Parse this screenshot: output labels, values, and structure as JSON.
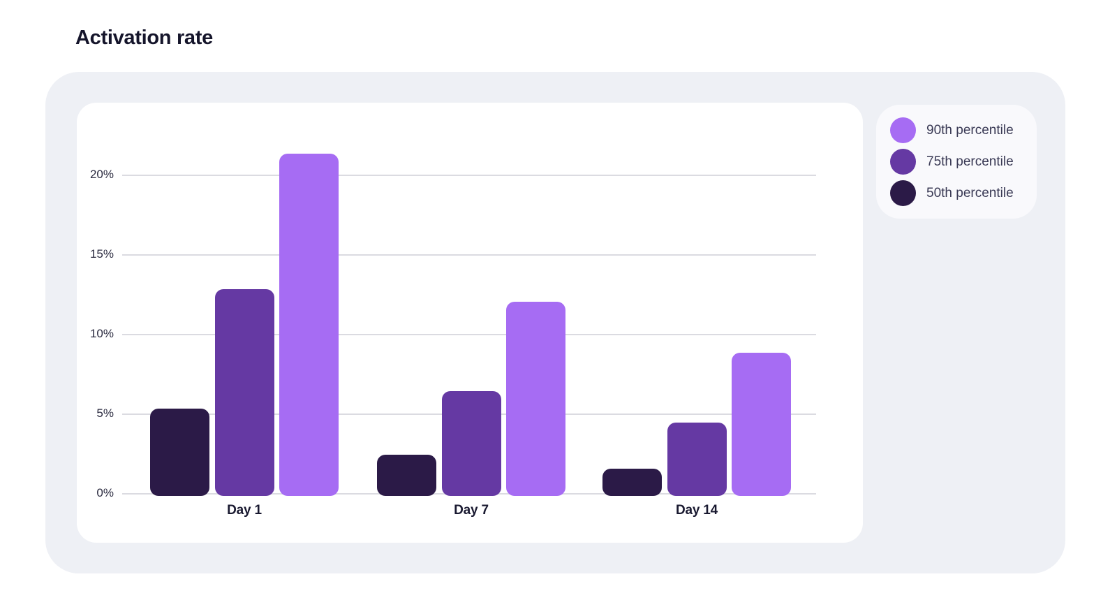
{
  "title": "Activation rate",
  "colors": {
    "page_bg": "#FFFFFF",
    "panel_bg": "#EEF0F5",
    "card_bg": "#FFFFFF",
    "legend_bg": "#F9F9FC",
    "gridline": "#DBDBE1",
    "axis_text": "#2B2B40",
    "category_text": "#191930",
    "legend_text": "#3A3A55",
    "title_text": "#15152B",
    "series_90th": "#A66CF3",
    "series_75th": "#6539A3",
    "series_50th": "#2B1A47"
  },
  "chart_data": {
    "type": "bar",
    "title": "Activation rate",
    "categories": [
      "Day 1",
      "Day 7",
      "Day 14"
    ],
    "series": [
      {
        "name": "50th percentile",
        "color": "#2B1A47",
        "values": [
          5.5,
          2.6,
          1.7
        ]
      },
      {
        "name": "75th percentile",
        "color": "#6539A3",
        "values": [
          13.0,
          6.6,
          4.6
        ]
      },
      {
        "name": "90th percentile",
        "color": "#A66CF3",
        "values": [
          21.5,
          12.2,
          9.0
        ]
      }
    ],
    "y_ticks": [
      {
        "value": 20,
        "label": "20%"
      },
      {
        "value": 15,
        "label": "15%"
      },
      {
        "value": 10,
        "label": "10%"
      },
      {
        "value": 5,
        "label": "5%"
      },
      {
        "value": 0,
        "label": "0%"
      }
    ],
    "ylim": [
      0,
      24.5
    ],
    "grid": true,
    "legend": {
      "position": "top-right",
      "items": [
        {
          "label": "90th percentile",
          "color": "#A66CF3"
        },
        {
          "label": "75th percentile",
          "color": "#6539A3"
        },
        {
          "label": "50th percentile",
          "color": "#2B1A47"
        }
      ]
    }
  }
}
